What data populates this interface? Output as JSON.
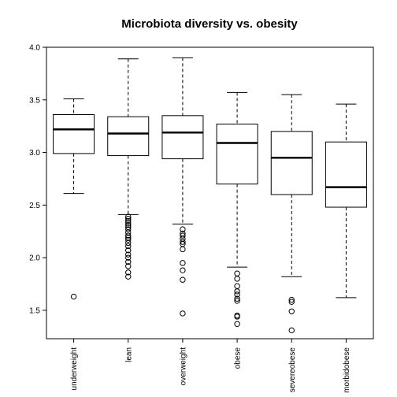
{
  "chart_data": {
    "type": "boxplot",
    "title": "Microbiota diversity vs. obesity",
    "xlabel": "",
    "ylabel": "",
    "ylim": [
      1.23,
      4.0
    ],
    "yticks": [
      "4.0",
      "3.5",
      "3.0",
      "2.5",
      "2.0",
      "1.5"
    ],
    "grid": false,
    "categories": [
      "underweight",
      "lean",
      "overweight",
      "obese",
      "severeobese",
      "morbidobese"
    ],
    "boxes": [
      {
        "whisker_low": 2.61,
        "q1": 2.99,
        "median": 3.22,
        "q3": 3.36,
        "whisker_high": 3.51,
        "outliers": [
          1.63
        ]
      },
      {
        "whisker_low": 2.41,
        "q1": 2.97,
        "median": 3.18,
        "q3": 3.34,
        "whisker_high": 3.89,
        "outliers": [
          2.39,
          2.37,
          2.35,
          2.33,
          2.31,
          2.29,
          2.27,
          2.24,
          2.21,
          2.19,
          2.17,
          2.14,
          2.11,
          2.07,
          2.03,
          2.0,
          1.96,
          1.92,
          1.86,
          1.82
        ]
      },
      {
        "whisker_low": 2.32,
        "q1": 2.94,
        "median": 3.19,
        "q3": 3.35,
        "whisker_high": 3.9,
        "outliers": [
          2.27,
          2.23,
          2.21,
          2.18,
          2.15,
          2.13,
          2.08,
          1.95,
          1.88,
          1.79,
          1.47
        ]
      },
      {
        "whisker_low": 1.91,
        "q1": 2.7,
        "median": 3.09,
        "q3": 3.27,
        "whisker_high": 3.57,
        "outliers": [
          1.85,
          1.8,
          1.73,
          1.68,
          1.65,
          1.61,
          1.59,
          1.45,
          1.44,
          1.37
        ]
      },
      {
        "whisker_low": 1.82,
        "q1": 2.6,
        "median": 2.95,
        "q3": 3.2,
        "whisker_high": 3.55,
        "outliers": [
          1.6,
          1.58,
          1.49,
          1.31
        ]
      },
      {
        "whisker_low": 1.62,
        "q1": 2.48,
        "median": 2.67,
        "q3": 3.1,
        "whisker_high": 3.46,
        "outliers": []
      }
    ]
  }
}
